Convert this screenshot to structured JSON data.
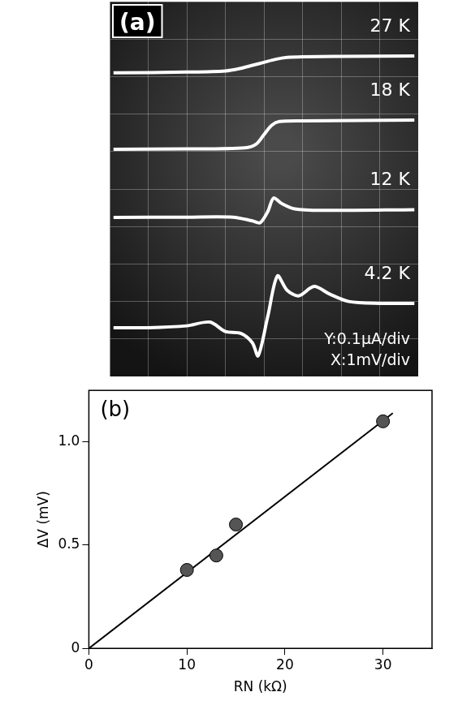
{
  "chart_data": [
    {
      "type": "line",
      "title": "(a)",
      "series": [
        {
          "name": "27 K",
          "color": "#ffffff",
          "x": [
            -3.9,
            -2,
            -1,
            -0.6,
            -0.3,
            0,
            0.3,
            0.6,
            1,
            2,
            3.9
          ],
          "values": [
            0.81,
            0.812,
            0.815,
            0.822,
            0.83,
            0.838,
            0.846,
            0.851,
            0.853,
            0.854,
            0.855
          ]
        },
        {
          "name": "18 K",
          "color": "#ffffff",
          "x": [
            -3.9,
            -2,
            -0.5,
            -0.2,
            0,
            0.2,
            0.4,
            1,
            3.9
          ],
          "values": [
            0.606,
            0.607,
            0.61,
            0.62,
            0.645,
            0.67,
            0.68,
            0.682,
            0.684
          ]
        },
        {
          "name": "12 K",
          "color": "#ffffff",
          "x": [
            -3.9,
            -2,
            -0.8,
            -0.3,
            -0.1,
            0.1,
            0.25,
            0.45,
            0.8,
            1.5,
            3.9
          ],
          "values": [
            0.424,
            0.425,
            0.425,
            0.415,
            0.41,
            0.44,
            0.476,
            0.462,
            0.447,
            0.443,
            0.445
          ]
        },
        {
          "name": "4.2 K",
          "color": "#ffffff",
          "x": [
            -3.9,
            -3,
            -2,
            -1.4,
            -1,
            -0.6,
            -0.3,
            -0.15,
            0.1,
            0.35,
            0.6,
            0.9,
            1.3,
            1.7,
            2.2,
            3,
            3.9
          ],
          "values": [
            0.13,
            0.13,
            0.135,
            0.145,
            0.12,
            0.115,
            0.09,
            0.055,
            0.16,
            0.268,
            0.23,
            0.215,
            0.24,
            0.22,
            0.2,
            0.195,
            0.195
          ]
        }
      ],
      "xlim": [
        -4,
        4
      ],
      "xticks": [
        -4,
        -3,
        -2,
        -1,
        0,
        1,
        2,
        3,
        4
      ],
      "ylim": [
        0,
        1
      ],
      "yticks": [
        0,
        0.1,
        0.2,
        0.3,
        0.4,
        0.5,
        0.6,
        0.7,
        0.8,
        0.9,
        1
      ],
      "grid": true,
      "tick_labels": false,
      "annotations": [
        "Y:0.1μA/div",
        "X:1mV/div"
      ]
    },
    {
      "type": "scatter",
      "title": "(b)",
      "x_label": "RN (kΩ)",
      "y_label": "ΔV (mV)",
      "series": [
        {
          "type": "scatter",
          "marker": "circle",
          "color": "#555555",
          "x": [
            10,
            13,
            15,
            30
          ],
          "values": [
            0.38,
            0.45,
            0.6,
            1.1
          ]
        },
        {
          "type": "line",
          "line_style": "solid",
          "color": "#000000",
          "x": [
            0,
            31
          ],
          "values": [
            0,
            1.14
          ]
        }
      ],
      "xlim": [
        0,
        35
      ],
      "xticks": [
        0,
        10,
        20,
        30
      ],
      "ylim": [
        0,
        1.25
      ],
      "yticks": [
        0,
        0.5,
        1
      ],
      "grid": false
    }
  ]
}
